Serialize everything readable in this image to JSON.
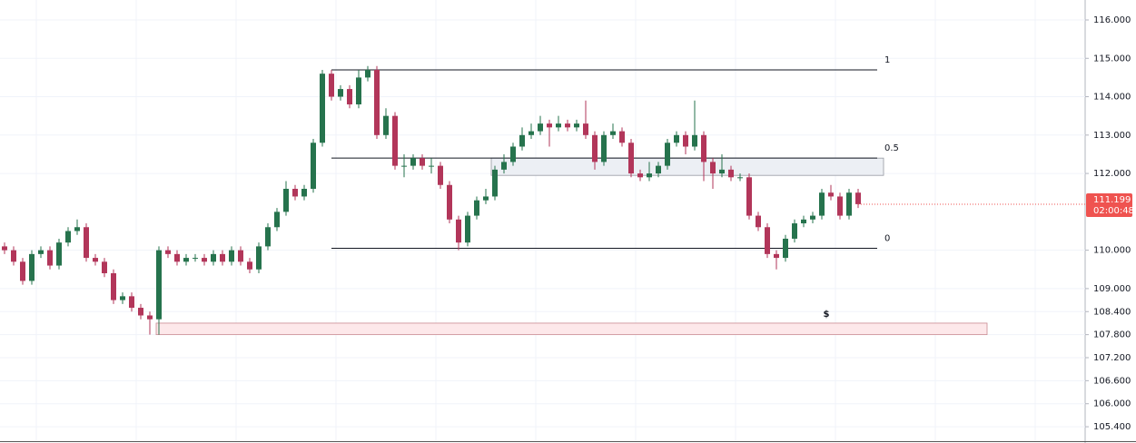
{
  "chart_data": {
    "type": "candlestick",
    "open": [
      110.1,
      110.0,
      109.7,
      109.2,
      109.9,
      110.0,
      109.6,
      110.2,
      110.5,
      110.6,
      109.8,
      109.7,
      109.4,
      108.7,
      108.8,
      108.5,
      108.3,
      108.2,
      110.0,
      109.9,
      109.7,
      109.8,
      109.8,
      109.7,
      109.9,
      109.7,
      110.0,
      109.7,
      109.5,
      110.1,
      110.6,
      111.0,
      111.6,
      111.4,
      111.6,
      112.8,
      114.6,
      114.0,
      114.2,
      113.8,
      114.5,
      114.7,
      113.0,
      113.5,
      112.2,
      112.2,
      112.4,
      112.2,
      112.2,
      111.7,
      110.8,
      110.2,
      110.9,
      111.3,
      111.4,
      112.1,
      112.3,
      112.7,
      113.0,
      113.1,
      113.3,
      113.2,
      113.3,
      113.2,
      113.3,
      113.0,
      112.3,
      113.0,
      113.1,
      112.8,
      112.0,
      111.9,
      112.0,
      112.2,
      112.8,
      113.0,
      112.7,
      113.0,
      112.3,
      112.0,
      112.1,
      111.9,
      111.9,
      110.9,
      110.6,
      109.9,
      109.8,
      110.3,
      110.7,
      110.8,
      110.9,
      111.5,
      111.4,
      110.9,
      111.5
    ],
    "high": [
      110.2,
      110.1,
      109.8,
      110.0,
      110.1,
      110.1,
      110.3,
      110.6,
      110.8,
      110.7,
      109.9,
      109.8,
      109.5,
      108.9,
      108.9,
      108.6,
      108.4,
      110.1,
      110.1,
      110.0,
      109.9,
      109.9,
      109.9,
      110.0,
      110.0,
      110.1,
      110.1,
      109.8,
      110.2,
      110.7,
      111.1,
      111.8,
      111.7,
      111.7,
      112.9,
      114.7,
      114.7,
      114.3,
      114.3,
      114.7,
      114.8,
      114.8,
      113.7,
      113.6,
      112.5,
      112.5,
      112.5,
      112.4,
      112.3,
      111.8,
      110.9,
      111.0,
      111.4,
      111.6,
      112.2,
      112.5,
      112.8,
      113.2,
      113.3,
      113.5,
      113.4,
      113.5,
      113.4,
      113.4,
      113.9,
      113.1,
      113.1,
      113.3,
      113.2,
      112.9,
      112.1,
      112.3,
      112.3,
      112.9,
      113.1,
      113.1,
      113.9,
      113.1,
      112.4,
      112.5,
      112.2,
      112.0,
      112.0,
      111.0,
      110.7,
      110.0,
      110.4,
      110.8,
      110.9,
      111.0,
      111.6,
      111.7,
      111.5,
      111.6,
      111.6
    ],
    "low": [
      109.9,
      109.6,
      109.1,
      109.1,
      109.8,
      109.5,
      109.5,
      110.1,
      110.4,
      109.7,
      109.6,
      109.3,
      108.6,
      108.6,
      108.4,
      108.2,
      107.8,
      107.8,
      109.8,
      109.6,
      109.6,
      109.7,
      109.6,
      109.6,
      109.6,
      109.6,
      109.6,
      109.4,
      109.4,
      110.0,
      110.5,
      110.9,
      111.3,
      111.3,
      111.5,
      112.7,
      113.9,
      113.9,
      113.7,
      113.7,
      114.4,
      112.9,
      112.9,
      112.1,
      111.9,
      112.1,
      112.1,
      112.0,
      111.6,
      110.7,
      110.0,
      110.1,
      110.8,
      111.2,
      111.3,
      112.0,
      112.2,
      112.6,
      112.9,
      113.0,
      112.7,
      113.1,
      113.1,
      113.1,
      112.9,
      112.1,
      112.2,
      112.9,
      112.7,
      111.9,
      111.8,
      111.8,
      111.9,
      112.1,
      112.7,
      112.5,
      112.6,
      111.8,
      111.6,
      111.9,
      111.8,
      111.8,
      110.8,
      110.5,
      109.8,
      109.5,
      109.7,
      110.2,
      110.6,
      110.7,
      110.8,
      111.3,
      110.8,
      110.8,
      111.1
    ],
    "close": [
      110.0,
      109.7,
      109.2,
      109.9,
      110.0,
      109.6,
      110.2,
      110.5,
      110.6,
      109.8,
      109.7,
      109.4,
      108.7,
      108.8,
      108.5,
      108.3,
      108.2,
      110.0,
      109.9,
      109.7,
      109.8,
      109.8,
      109.7,
      109.9,
      109.7,
      110.0,
      109.7,
      109.5,
      110.1,
      110.6,
      111.0,
      111.6,
      111.4,
      111.6,
      112.8,
      114.6,
      114.0,
      114.2,
      113.8,
      114.5,
      114.7,
      113.0,
      113.5,
      112.2,
      112.2,
      112.4,
      112.2,
      112.2,
      111.7,
      110.8,
      110.2,
      110.9,
      111.3,
      111.4,
      112.1,
      112.3,
      112.7,
      113.0,
      113.1,
      113.3,
      113.2,
      113.3,
      113.2,
      113.3,
      113.0,
      112.3,
      113.0,
      113.1,
      112.8,
      112.0,
      111.9,
      112.0,
      112.2,
      112.8,
      113.0,
      112.7,
      113.0,
      112.3,
      112.0,
      112.1,
      111.9,
      111.9,
      110.9,
      110.6,
      109.9,
      109.8,
      110.3,
      110.7,
      110.8,
      110.9,
      111.5,
      111.4,
      110.9,
      111.5,
      111.2
    ],
    "up_color": "#26734d",
    "down_color": "#b2365a",
    "ylim": [
      105.0,
      116.52
    ],
    "yticks": [
      {
        "value": 116,
        "label": "116.000"
      },
      {
        "value": 115,
        "label": "115.000"
      },
      {
        "value": 114,
        "label": "114.000"
      },
      {
        "value": 113,
        "label": "113.000"
      },
      {
        "value": 112,
        "label": "112.000"
      },
      {
        "value": 110,
        "label": "110.000"
      },
      {
        "value": 109,
        "label": "109.000"
      },
      {
        "value": 108.4,
        "label": "108.400"
      },
      {
        "value": 107.8,
        "label": "107.800"
      },
      {
        "value": 107.2,
        "label": "107.200"
      },
      {
        "value": 106.6,
        "label": "106.600"
      },
      {
        "value": 106,
        "label": "106.000"
      },
      {
        "value": 105.4,
        "label": "105.400"
      }
    ],
    "grid": true,
    "price_label": {
      "value": 111.199,
      "countdown": "02:00:48",
      "color": "#ef5350"
    },
    "fib_levels": [
      {
        "ratio": 1,
        "price": 114.7
      },
      {
        "ratio": 0.5,
        "price": 112.4
      },
      {
        "ratio": 0,
        "price": 110.05
      }
    ],
    "zones": [
      {
        "top": 112.4,
        "bottom": 111.95,
        "fill": "#eceff4",
        "stroke": "#9598a1"
      },
      {
        "top": 108.1,
        "bottom": 107.8,
        "fill": "#fde8ea",
        "stroke": "#c98a92",
        "label": "$"
      }
    ]
  }
}
